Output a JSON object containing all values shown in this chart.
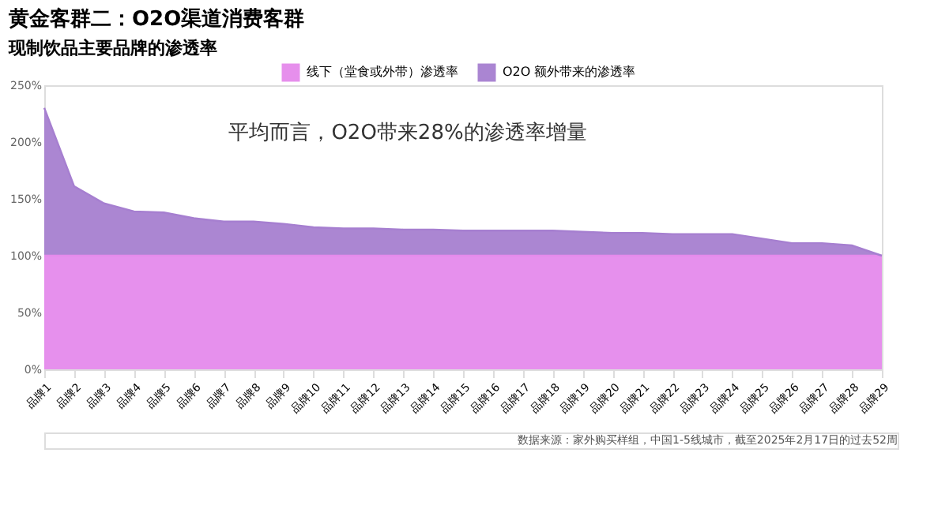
{
  "chart_data": {
    "type": "area",
    "stacked": true,
    "title": "黄金客群二：O2O渠道消费客群",
    "subtitle": "现制饮品主要品牌的渗透率",
    "categories": [
      "品牌1",
      "品牌2",
      "品牌3",
      "品牌4",
      "品牌5",
      "品牌6",
      "品牌7",
      "品牌8",
      "品牌9",
      "品牌10",
      "品牌11",
      "品牌12",
      "品牌13",
      "品牌14",
      "品牌15",
      "品牌16",
      "品牌17",
      "品牌18",
      "品牌19",
      "品牌20",
      "品牌21",
      "品牌22",
      "品牌23",
      "品牌24",
      "品牌25",
      "品牌26",
      "品牌27",
      "品牌28",
      "品牌29"
    ],
    "series": [
      {
        "name": "线下（堂食或外带）渗透率",
        "color": "#e58aec",
        "values": [
          100,
          100,
          100,
          100,
          100,
          100,
          100,
          100,
          100,
          100,
          100,
          100,
          100,
          100,
          100,
          100,
          100,
          100,
          100,
          100,
          100,
          100,
          100,
          100,
          100,
          100,
          100,
          100,
          100
        ]
      },
      {
        "name": "O2O 额外带来的渗透率",
        "color": "#a67fd0",
        "values": [
          130,
          61,
          46,
          39,
          38,
          33,
          30,
          30,
          28,
          25,
          24,
          24,
          23,
          23,
          22,
          22,
          22,
          22,
          21,
          20,
          20,
          19,
          19,
          19,
          15,
          11,
          11,
          9,
          0
        ]
      }
    ],
    "ylim": [
      0,
      250
    ],
    "yticks": [
      {
        "value": 0,
        "label": "0%"
      },
      {
        "value": 50,
        "label": "50%"
      },
      {
        "value": 100,
        "label": "100%"
      },
      {
        "value": 150,
        "label": "150%"
      },
      {
        "value": 200,
        "label": "200%"
      },
      {
        "value": 250,
        "label": "250%"
      }
    ],
    "grid": false,
    "legend": "top",
    "annotations": [
      "平均而言，O2O带来28%的渗透率增量",
      "数据来源：家外购买样组，中国1-5线城市，截至2025年2月17日的过去52周"
    ]
  }
}
